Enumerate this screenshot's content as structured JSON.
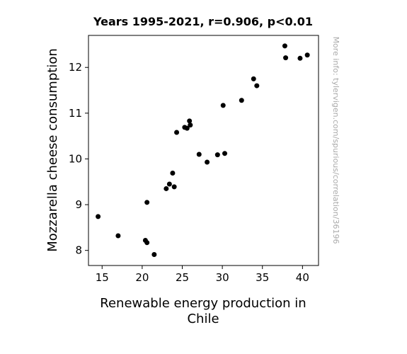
{
  "chart_data": {
    "type": "scatter",
    "title": "Years 1995-2021, r=0.906, p<0.01",
    "xlabel_lines": [
      "Renewable energy production in",
      "Chile"
    ],
    "ylabel": "Mozzarella cheese consumption",
    "watermark": "More info: tylervigen.com/spurious/correlation/36196",
    "xlim": [
      13.3,
      42.0
    ],
    "ylim": [
      7.67,
      12.7
    ],
    "xticks": [
      15,
      20,
      25,
      30,
      35,
      40
    ],
    "yticks": [
      8,
      9,
      10,
      11,
      12
    ],
    "point_color": "#000000",
    "points": [
      {
        "x": 14.5,
        "y": 8.74
      },
      {
        "x": 17.0,
        "y": 8.32
      },
      {
        "x": 20.4,
        "y": 8.22
      },
      {
        "x": 20.6,
        "y": 8.17
      },
      {
        "x": 20.6,
        "y": 9.05
      },
      {
        "x": 21.5,
        "y": 7.91
      },
      {
        "x": 23.0,
        "y": 9.35
      },
      {
        "x": 23.4,
        "y": 9.45
      },
      {
        "x": 23.8,
        "y": 9.69
      },
      {
        "x": 24.0,
        "y": 9.39
      },
      {
        "x": 24.3,
        "y": 10.58
      },
      {
        "x": 25.3,
        "y": 10.69
      },
      {
        "x": 25.6,
        "y": 10.67
      },
      {
        "x": 25.9,
        "y": 10.83
      },
      {
        "x": 26.0,
        "y": 10.74
      },
      {
        "x": 27.1,
        "y": 10.1
      },
      {
        "x": 28.1,
        "y": 9.93
      },
      {
        "x": 29.4,
        "y": 10.09
      },
      {
        "x": 30.1,
        "y": 11.17
      },
      {
        "x": 30.3,
        "y": 10.12
      },
      {
        "x": 32.4,
        "y": 11.28
      },
      {
        "x": 33.9,
        "y": 11.75
      },
      {
        "x": 34.3,
        "y": 11.6
      },
      {
        "x": 37.8,
        "y": 12.47
      },
      {
        "x": 37.9,
        "y": 12.21
      },
      {
        "x": 39.7,
        "y": 12.2
      },
      {
        "x": 40.6,
        "y": 12.27
      }
    ]
  }
}
